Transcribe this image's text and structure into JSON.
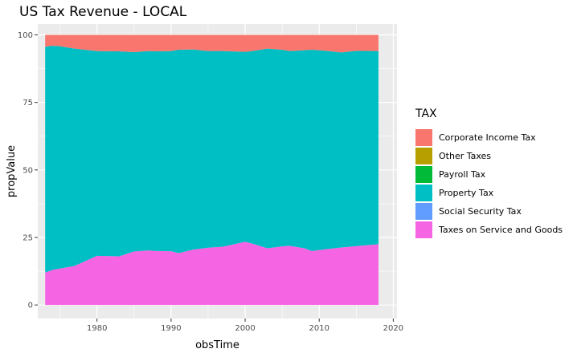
{
  "chart_data": {
    "type": "area",
    "stacking": "proportional",
    "title": "US Tax Revenue - LOCAL",
    "xlabel": "obsTime",
    "ylabel": "propValue",
    "xlim": [
      1972,
      2020.5
    ],
    "ylim": [
      -5,
      104
    ],
    "xticks": [
      1980,
      1990,
      2000,
      2010,
      2020
    ],
    "yticks": [
      0,
      25,
      50,
      75,
      100
    ],
    "grid": true,
    "legend_title": "TAX",
    "legend_position": "right",
    "x": [
      1973,
      1974,
      1975,
      1977,
      1980,
      1983,
      1985,
      1987,
      1988,
      1990,
      1991,
      1993,
      1995,
      1997,
      2000,
      2001,
      2003,
      2005,
      2006,
      2008,
      2009,
      2011,
      2013,
      2015,
      2018
    ],
    "series": [
      {
        "name": "Taxes on Service and Goods",
        "color": "#F564E3",
        "values": [
          12.0,
          13.0,
          13.5,
          14.5,
          18.2,
          18.0,
          19.8,
          20.2,
          20.0,
          19.9,
          19.2,
          20.5,
          21.2,
          21.6,
          23.4,
          22.7,
          21.0,
          21.7,
          21.9,
          21.0,
          20.0,
          20.7,
          21.3,
          21.8,
          22.5
        ]
      },
      {
        "name": "Social Security Tax",
        "color": "#619CFF",
        "values": [
          0,
          0,
          0,
          0,
          0,
          0,
          0,
          0,
          0,
          0,
          0,
          0,
          0,
          0,
          0,
          0,
          0,
          0,
          0,
          0,
          0,
          0,
          0,
          0,
          0
        ]
      },
      {
        "name": "Property Tax",
        "color": "#00BFC4",
        "values": [
          83.6,
          83.0,
          82.3,
          80.4,
          75.8,
          75.9,
          73.8,
          73.8,
          73.9,
          74.1,
          75.3,
          74.1,
          72.8,
          72.4,
          70.3,
          71.3,
          73.9,
          72.8,
          72.1,
          73.3,
          74.5,
          73.4,
          72.2,
          72.3,
          71.5
        ]
      },
      {
        "name": "Payroll Tax",
        "color": "#00BA38",
        "values": [
          0,
          0,
          0,
          0,
          0,
          0,
          0,
          0,
          0,
          0,
          0,
          0,
          0,
          0,
          0,
          0,
          0,
          0,
          0,
          0,
          0,
          0,
          0,
          0,
          0
        ]
      },
      {
        "name": "Other Taxes",
        "color": "#B79F00",
        "values": [
          0,
          0,
          0,
          0,
          0,
          0,
          0,
          0,
          0,
          0,
          0,
          0,
          0,
          0,
          0,
          0,
          0,
          0,
          0,
          0,
          0,
          0,
          0,
          0,
          0
        ]
      },
      {
        "name": "Corporate Income Tax",
        "color": "#F8766D",
        "values": [
          4.4,
          4.0,
          4.2,
          5.1,
          6.0,
          6.1,
          6.4,
          6.0,
          6.1,
          6.0,
          5.5,
          5.4,
          6.0,
          6.0,
          6.3,
          6.0,
          5.1,
          5.5,
          6.0,
          5.7,
          5.5,
          5.9,
          6.5,
          5.9,
          6.0
        ]
      }
    ],
    "legend_order": [
      "Corporate Income Tax",
      "Other Taxes",
      "Payroll Tax",
      "Property Tax",
      "Social Security Tax",
      "Taxes on Service and Goods"
    ]
  }
}
